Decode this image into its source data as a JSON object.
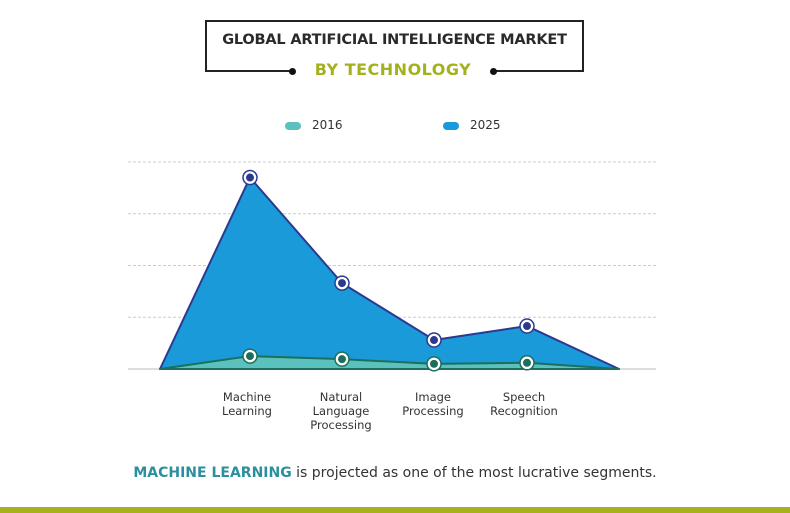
{
  "header": {
    "title": "GLOBAL ARTIFICIAL INTELLIGENCE MARKET",
    "subtitle": "BY TECHNOLOGY"
  },
  "chart_data": {
    "type": "area",
    "categories": [
      "",
      "Machine Learning",
      "Natural Language Processing",
      "Image Processing",
      "Speech Recognition",
      ""
    ],
    "category_lines": [
      [],
      [
        "Machine",
        "Learning"
      ],
      [
        "Natural",
        "Language",
        "Processing"
      ],
      [
        "Image",
        "Processing"
      ],
      [
        "Speech",
        "Recognition"
      ],
      []
    ],
    "series": [
      {
        "name": "2025",
        "color": "#1a9ad9",
        "line_color": "#2b3a8f",
        "values": [
          0,
          3.7,
          1.66,
          0.56,
          0.83,
          0
        ]
      },
      {
        "name": "2016",
        "color": "#5bc1bd",
        "line_color": "#1c6f5c",
        "values": [
          0,
          0.25,
          0.19,
          0.1,
          0.12,
          0
        ]
      }
    ],
    "ylim": [
      0,
      4
    ],
    "grid": true,
    "legend": "top",
    "note": "y-axis values not printed; values relative to gridlines"
  },
  "footer": {
    "highlight": "MACHINE LEARNING",
    "text": " is projected as one of the most lucrative segments."
  },
  "colors": {
    "accent": "#a8b11a",
    "highlight": "#2b8f9f"
  }
}
